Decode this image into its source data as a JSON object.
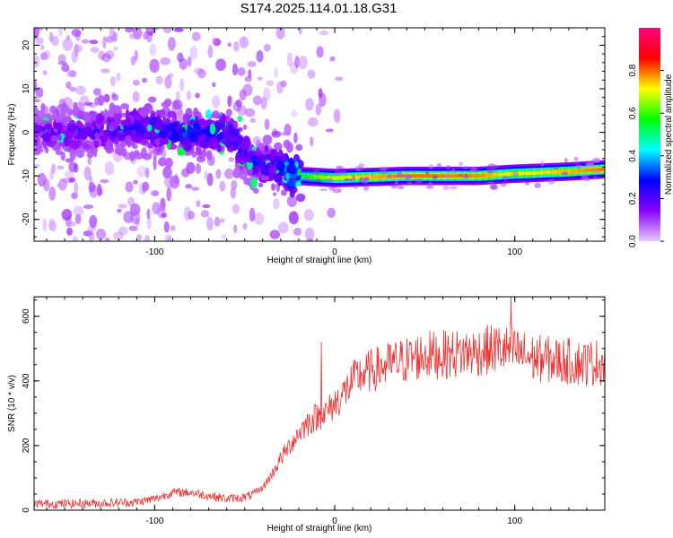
{
  "title": "S174.2025.114.01.18.G31",
  "chart_data": [
    {
      "type": "heatmap",
      "title": "S174.2025.114.01.18.G31",
      "xlabel": "Height of straight line (km)",
      "ylabel": "Frequency (Hz)",
      "xlim": [
        -167,
        150
      ],
      "ylim": [
        -25,
        24
      ],
      "xticks": [
        "-100",
        "0",
        "100"
      ],
      "yticks": [
        "20",
        "10",
        "0",
        "-10",
        "-20"
      ],
      "colorbar": {
        "label": "Normalized spectral amplitude",
        "range": [
          0.0,
          1.0
        ],
        "ticks": [
          "0.0",
          "0.2",
          "0.4",
          "0.6",
          "0.8"
        ],
        "colormap": [
          "#e8c8ff",
          "#8a00ff",
          "#0000ff",
          "#00ffff",
          "#00ff00",
          "#ffff00",
          "#ff0000",
          "#ff0080"
        ]
      },
      "ridge": [
        {
          "x": -167,
          "f": 0,
          "amp": 0.18
        },
        {
          "x": -140,
          "f": 0,
          "amp": 0.2
        },
        {
          "x": -110,
          "f": 1,
          "amp": 0.25
        },
        {
          "x": -80,
          "f": 0,
          "amp": 0.3
        },
        {
          "x": -60,
          "f": 0,
          "amp": 0.28
        },
        {
          "x": -45,
          "f": -7,
          "amp": 0.25
        },
        {
          "x": -30,
          "f": -8,
          "amp": 0.3
        },
        {
          "x": -20,
          "f": -10,
          "amp": 0.55
        },
        {
          "x": 0,
          "f": -10.5,
          "amp": 0.7
        },
        {
          "x": 40,
          "f": -10,
          "amp": 0.8
        },
        {
          "x": 80,
          "f": -10,
          "amp": 0.78
        },
        {
          "x": 100,
          "f": -9.5,
          "amp": 0.7
        },
        {
          "x": 130,
          "f": -9,
          "amp": 0.75
        },
        {
          "x": 150,
          "f": -8.5,
          "amp": 0.8
        }
      ]
    },
    {
      "type": "line",
      "xlabel": "Height of straight line (km)",
      "ylabel": "SNR (10 * v/v)",
      "xlim": [
        -167,
        150
      ],
      "ylim": [
        0,
        660
      ],
      "xticks": [
        "-100",
        "0",
        "100"
      ],
      "yticks": [
        "0",
        "200",
        "400",
        "600"
      ],
      "color": "#ee3333",
      "series": [
        {
          "x": [
            -167,
            -150,
            -130,
            -110,
            -100,
            -90,
            -80,
            -70,
            -60,
            -50,
            -45,
            -40,
            -35,
            -30,
            -25,
            -20,
            -15,
            -10,
            -5,
            0,
            5,
            10,
            15,
            20,
            25,
            30,
            40,
            50,
            60,
            70,
            80,
            90,
            100,
            110,
            120,
            130,
            140,
            150
          ],
          "y": [
            20,
            20,
            22,
            25,
            35,
            55,
            55,
            45,
            35,
            40,
            50,
            70,
            110,
            160,
            200,
            240,
            270,
            290,
            300,
            330,
            360,
            400,
            420,
            430,
            440,
            450,
            465,
            480,
            480,
            485,
            490,
            500,
            490,
            470,
            465,
            460,
            455,
            460
          ]
        }
      ]
    }
  ]
}
